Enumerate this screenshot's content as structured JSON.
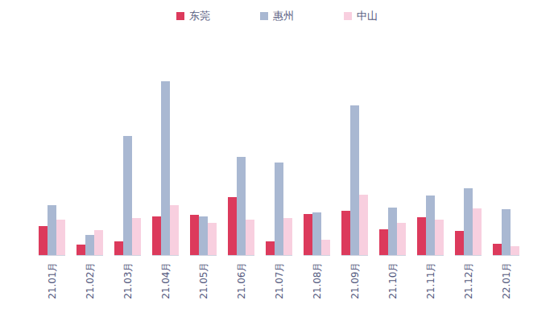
{
  "chart_data": {
    "type": "bar",
    "categories": [
      "21.01月",
      "21.02月",
      "21.03月",
      "21.04月",
      "21.05月",
      "21.06月",
      "21.07月",
      "21.08月",
      "21.09月",
      "21.10月",
      "21.11月",
      "21.12月",
      "22.01月"
    ],
    "series": [
      {
        "name": "东莞",
        "color": "#dc3a5c",
        "values": [
          36,
          13,
          17,
          48,
          50,
          72,
          17,
          51,
          55,
          32,
          47,
          30,
          14
        ]
      },
      {
        "name": "惠州",
        "color": "#a9b8d2",
        "values": [
          62,
          25,
          148,
          216,
          48,
          122,
          115,
          53,
          186,
          59,
          74,
          83,
          57
        ]
      },
      {
        "name": "中山",
        "color": "#f8cfdf",
        "values": [
          44,
          31,
          46,
          62,
          40,
          44,
          46,
          19,
          75,
          40,
          44,
          58,
          11
        ]
      }
    ],
    "ylim": [
      0,
      240
    ],
    "yticks": [],
    "tick_labels": "x",
    "legend": "top",
    "grid": false
  }
}
